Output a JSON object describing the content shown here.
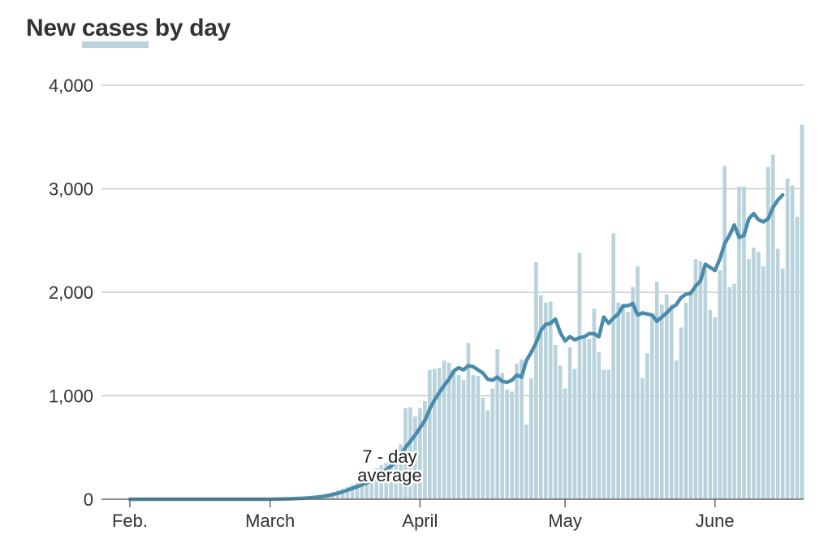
{
  "title": {
    "before": "New ",
    "highlight": "cases",
    "after": " by day"
  },
  "colors": {
    "bar": "#b9d3dc",
    "line": "#4a8bab",
    "grid": "#cccccc",
    "axis": "#666666",
    "text": "#333333"
  },
  "chart_data": {
    "type": "bar",
    "ylim": [
      0,
      4000
    ],
    "yticks": [
      {
        "value": 0,
        "label": "0"
      },
      {
        "value": 1000,
        "label": "1,000"
      },
      {
        "value": 2000,
        "label": "2,000"
      },
      {
        "value": 3000,
        "label": "3,000"
      },
      {
        "value": 4000,
        "label": "4,000"
      }
    ],
    "xticks": [
      {
        "date": "Feb 1",
        "label": "Feb."
      },
      {
        "date": "Mar 1",
        "label": "March"
      },
      {
        "date": "Apr 1",
        "label": "April"
      },
      {
        "date": "May 1",
        "label": "May"
      },
      {
        "date": "Jun 1",
        "label": "June"
      }
    ],
    "annotation": {
      "line1": "7 - day",
      "line2": "average"
    },
    "series": [
      {
        "role": "daily",
        "values": [
          0,
          0,
          0,
          0,
          0,
          0,
          0,
          0,
          0,
          0,
          0,
          0,
          0,
          0,
          0,
          0,
          0,
          0,
          0,
          0,
          0,
          0,
          0,
          0,
          0,
          0,
          0,
          0,
          0,
          0,
          2,
          3,
          4,
          5,
          7,
          10,
          13,
          18,
          25,
          30,
          40,
          55,
          70,
          85,
          100,
          120,
          140,
          155,
          170,
          190,
          240,
          300,
          330,
          350,
          420,
          470,
          530,
          880,
          890,
          800,
          880,
          950,
          1250,
          1260,
          1270,
          1340,
          1320,
          1230,
          1200,
          1150,
          1510,
          1200,
          1190,
          980,
          860,
          1070,
          1450,
          1220,
          1060,
          1040,
          1310,
          1350,
          720,
          1170,
          2290,
          1970,
          1900,
          1910,
          1490,
          1290,
          1070,
          1470,
          1260,
          2380,
          1550,
          1550,
          1840,
          1420,
          1250,
          1250,
          2570,
          1900,
          1870,
          1810,
          2050,
          2250,
          1170,
          1410,
          1780,
          2100,
          1880,
          1980,
          1880,
          1340,
          1660,
          1900,
          2020,
          2320,
          2300,
          2220,
          1830,
          1760,
          2210,
          3220,
          2050,
          2080,
          3020,
          3020,
          2320,
          2430,
          2390,
          2250,
          3210,
          3330,
          2420,
          2230,
          3100,
          3030,
          2730,
          3620
        ]
      },
      {
        "role": "average",
        "values": [
          0,
          0,
          0,
          0,
          0,
          0,
          0,
          0,
          0,
          0,
          0,
          0,
          0,
          0,
          0,
          0,
          0,
          0,
          0,
          0,
          0,
          0,
          0,
          0,
          0,
          0,
          0,
          0,
          0,
          0,
          1,
          2,
          3,
          4,
          6,
          8,
          10,
          13,
          17,
          22,
          28,
          36,
          46,
          58,
          72,
          88,
          105,
          122,
          140,
          158,
          180,
          215,
          250,
          285,
          320,
          360,
          430,
          500,
          560,
          620,
          690,
          760,
          870,
          960,
          1030,
          1100,
          1160,
          1240,
          1270,
          1250,
          1290,
          1280,
          1250,
          1220,
          1160,
          1150,
          1180,
          1140,
          1130,
          1150,
          1200,
          1180,
          1340,
          1420,
          1510,
          1630,
          1690,
          1700,
          1740,
          1610,
          1530,
          1570,
          1540,
          1560,
          1570,
          1600,
          1600,
          1570,
          1760,
          1700,
          1750,
          1790,
          1870,
          1870,
          1890,
          1780,
          1800,
          1790,
          1780,
          1720,
          1760,
          1800,
          1850,
          1880,
          1950,
          1980,
          1990,
          2060,
          2110,
          2270,
          2240,
          2210,
          2320,
          2470,
          2550,
          2650,
          2530,
          2550,
          2710,
          2760,
          2700,
          2680,
          2710,
          2820,
          2890,
          2940
        ]
      }
    ]
  }
}
